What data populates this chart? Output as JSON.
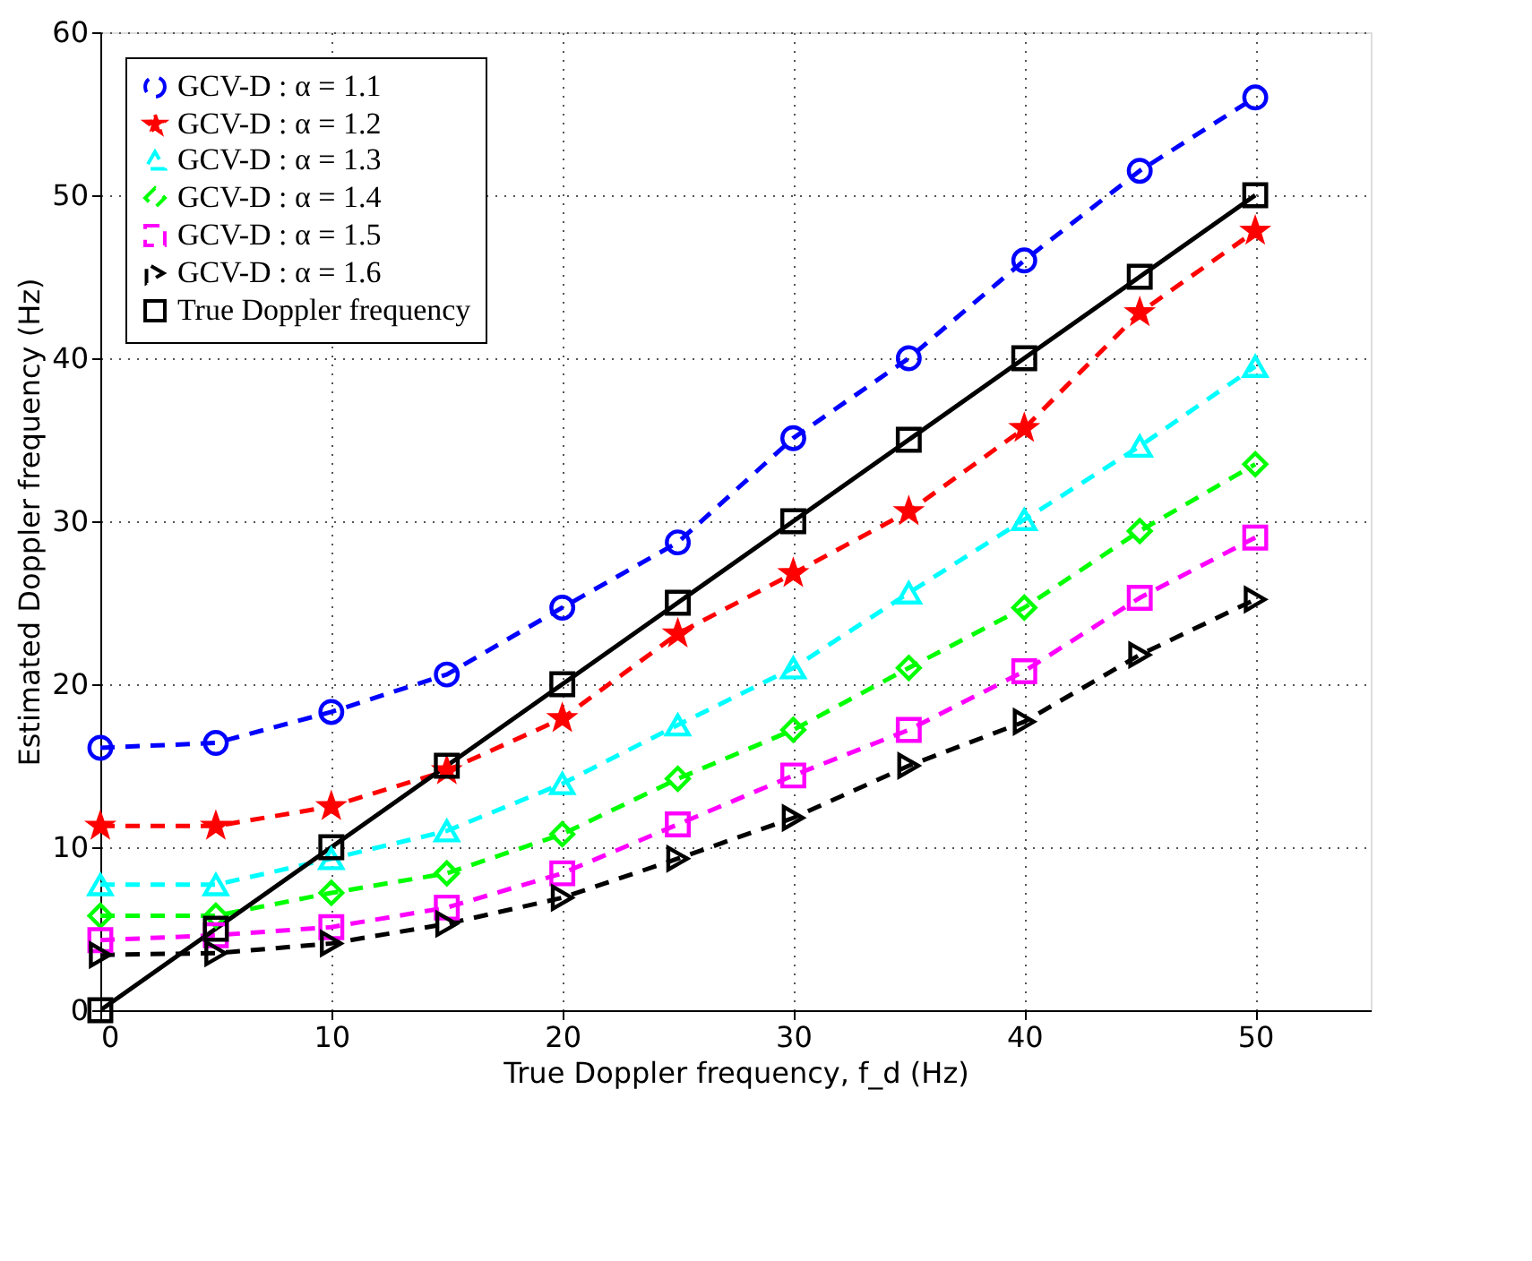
{
  "chart_data": {
    "type": "line",
    "xlabel": "True Doppler frequency, f_d (Hz)",
    "ylabel": "Estimated Doppler frequency (Hz)",
    "x": [
      0,
      5,
      10,
      15,
      20,
      25,
      30,
      35,
      40,
      45,
      50
    ],
    "xlim": [
      0,
      55
    ],
    "xticks": [
      0,
      10,
      20,
      30,
      40,
      50
    ],
    "ylim": [
      0,
      60
    ],
    "yticks": [
      0,
      10,
      20,
      30,
      40,
      50,
      60
    ],
    "grid": true,
    "legend": "top left",
    "series": [
      {
        "name": "GCV-D : α = 1.1",
        "color": "#0000ff",
        "marker": "circle",
        "line_style": "dashed",
        "values": [
          16.1,
          16.4,
          18.3,
          20.6,
          24.7,
          28.7,
          35.1,
          40,
          46,
          51.5,
          56
        ]
      },
      {
        "name": "GCV-D : α = 1.2",
        "color": "#ff0000",
        "marker": "star",
        "line_style": "dashed",
        "values": [
          11.3,
          11.3,
          12.5,
          14.7,
          17.9,
          23.1,
          26.8,
          30.6,
          35.7,
          42.8,
          47.8
        ]
      },
      {
        "name": "GCV-D : α = 1.3",
        "color": "#00ffff",
        "marker": "triangle",
        "line_style": "dashed",
        "values": [
          7.7,
          7.7,
          9.3,
          11,
          13.9,
          17.5,
          21,
          25.6,
          30.1,
          34.6,
          39.5
        ]
      },
      {
        "name": "GCV-D : α = 1.4",
        "color": "#00ff00",
        "marker": "diamond",
        "line_style": "dashed",
        "values": [
          5.8,
          5.8,
          7.2,
          8.4,
          10.8,
          14.2,
          17.2,
          21,
          24.7,
          29.4,
          33.5
        ]
      },
      {
        "name": "GCV-D : α = 1.5",
        "color": "#ff00ff",
        "marker": "square",
        "line_style": "dashed",
        "values": [
          4.3,
          4.6,
          5.1,
          6.3,
          8.4,
          11.4,
          14.4,
          17.2,
          20.8,
          25.3,
          29
        ]
      },
      {
        "name": "GCV-D : α = 1.6",
        "color": "#000000",
        "marker": "triangle-right",
        "line_style": "dashed",
        "values": [
          3.4,
          3.5,
          4.1,
          5.3,
          6.9,
          9.3,
          11.8,
          15,
          17.7,
          21.8,
          25.2
        ]
      },
      {
        "name": "True Doppler frequency",
        "color": "#000000",
        "marker": "square",
        "line_style": "solid",
        "values": [
          0,
          5,
          10,
          15,
          20,
          25,
          30,
          35,
          40,
          45,
          50
        ]
      }
    ]
  }
}
